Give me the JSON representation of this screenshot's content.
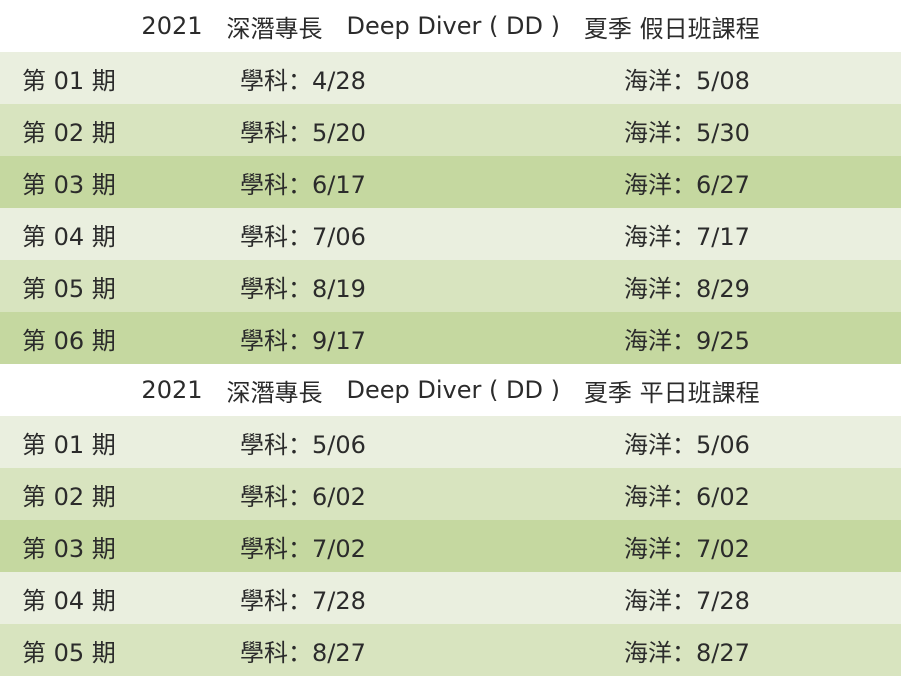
{
  "sections": [
    {
      "title": {
        "year": "2021",
        "name_zh": "深潛專長",
        "name_en": "Deep Diver ( DD )",
        "class_type": "夏季 假日班課程"
      },
      "rows": [
        {
          "period": "第 01 期",
          "theory": "學科：4/28",
          "ocean": "海洋：5/08"
        },
        {
          "period": "第 02 期",
          "theory": "學科：5/20",
          "ocean": "海洋：5/30"
        },
        {
          "period": "第 03 期",
          "theory": "學科：6/17",
          "ocean": "海洋：6/27"
        },
        {
          "period": "第 04 期",
          "theory": "學科：7/06",
          "ocean": "海洋：7/17"
        },
        {
          "period": "第 05 期",
          "theory": "學科：8/19",
          "ocean": "海洋：8/29"
        },
        {
          "period": "第 06 期",
          "theory": "學科：9/17",
          "ocean": "海洋：9/25"
        }
      ]
    },
    {
      "title": {
        "year": "2021",
        "name_zh": "深潛專長",
        "name_en": "Deep Diver ( DD )",
        "class_type": "夏季 平日班課程"
      },
      "rows": [
        {
          "period": "第 01 期",
          "theory": "學科：5/06",
          "ocean": "海洋：5/06"
        },
        {
          "period": "第 02 期",
          "theory": "學科：6/02",
          "ocean": "海洋：6/02"
        },
        {
          "period": "第 03 期",
          "theory": "學科：7/02",
          "ocean": "海洋：7/02"
        },
        {
          "period": "第 04 期",
          "theory": "學科：7/28",
          "ocean": "海洋：7/28"
        },
        {
          "period": "第 05 期",
          "theory": "學科：8/27",
          "ocean": "海洋：8/27"
        }
      ]
    }
  ],
  "colors": {
    "row_light": "#eaefdf",
    "row_mid": "#d8e4bf",
    "row_dark": "#c5d8a0",
    "text": "#2b2b2b"
  }
}
